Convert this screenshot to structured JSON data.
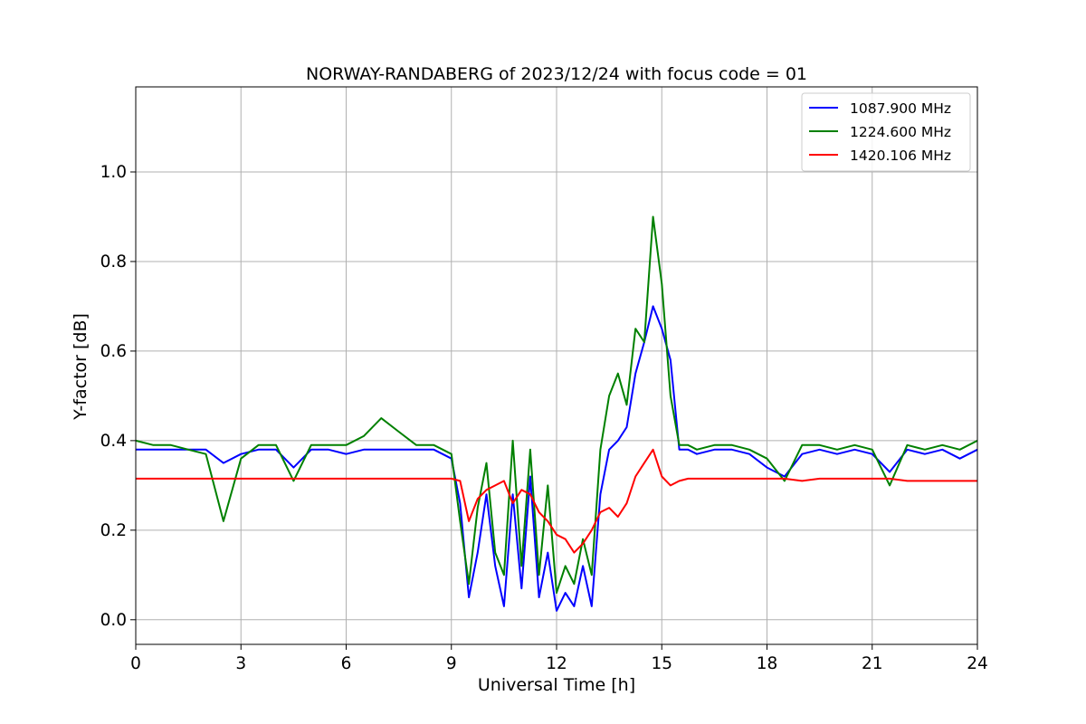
{
  "chart_data": {
    "type": "line",
    "title": "NORWAY-RANDABERG of 2023/12/24 with focus code = 01",
    "xlabel": "Universal Time [h]",
    "ylabel": "Y-factor [dB]",
    "xlim": [
      0,
      24
    ],
    "ylim": [
      -0.055,
      1.19
    ],
    "xticks": [
      0,
      3,
      6,
      9,
      12,
      15,
      18,
      21,
      24
    ],
    "xtick_labels": [
      "0",
      "3",
      "6",
      "9",
      "12",
      "15",
      "18",
      "21",
      "24"
    ],
    "yticks": [
      0.0,
      0.2,
      0.4,
      0.6,
      0.8,
      1.0
    ],
    "ytick_labels": [
      "0.0",
      "0.2",
      "0.4",
      "0.6",
      "0.8",
      "1.0"
    ],
    "grid": true,
    "legend_position": "upper right",
    "series": [
      {
        "name": "1087.900 MHz",
        "color": "#0000ff",
        "x": [
          0,
          0.5,
          1,
          1.5,
          2,
          2.5,
          3,
          3.5,
          4,
          4.5,
          5,
          5.5,
          6,
          6.5,
          7,
          7.5,
          8,
          8.5,
          9,
          9.25,
          9.5,
          9.75,
          10,
          10.25,
          10.5,
          10.75,
          11,
          11.25,
          11.5,
          11.75,
          12,
          12.25,
          12.5,
          12.75,
          13,
          13.25,
          13.5,
          13.75,
          14,
          14.25,
          14.5,
          14.75,
          15,
          15.25,
          15.5,
          15.75,
          16,
          16.5,
          17,
          17.5,
          18,
          18.5,
          19,
          19.5,
          20,
          20.5,
          21,
          21.5,
          22,
          22.5,
          23,
          23.5,
          24
        ],
        "y": [
          0.38,
          0.38,
          0.38,
          0.38,
          0.38,
          0.35,
          0.37,
          0.38,
          0.38,
          0.34,
          0.38,
          0.38,
          0.37,
          0.38,
          0.38,
          0.38,
          0.38,
          0.38,
          0.36,
          0.26,
          0.05,
          0.15,
          0.28,
          0.12,
          0.03,
          0.28,
          0.07,
          0.32,
          0.05,
          0.15,
          0.02,
          0.06,
          0.03,
          0.12,
          0.03,
          0.28,
          0.38,
          0.4,
          0.43,
          0.55,
          0.62,
          0.7,
          0.65,
          0.58,
          0.38,
          0.38,
          0.37,
          0.38,
          0.38,
          0.37,
          0.34,
          0.32,
          0.37,
          0.38,
          0.37,
          0.38,
          0.37,
          0.33,
          0.38,
          0.37,
          0.38,
          0.36,
          0.38
        ]
      },
      {
        "name": "1224.600 MHz",
        "color": "#008000",
        "x": [
          0,
          0.5,
          1,
          1.5,
          2,
          2.5,
          3,
          3.5,
          4,
          4.5,
          5,
          5.5,
          6,
          6.5,
          7,
          7.5,
          8,
          8.5,
          9,
          9.25,
          9.5,
          9.75,
          10,
          10.25,
          10.5,
          10.75,
          11,
          11.25,
          11.5,
          11.75,
          12,
          12.25,
          12.5,
          12.75,
          13,
          13.25,
          13.5,
          13.75,
          14,
          14.25,
          14.5,
          14.75,
          15,
          15.25,
          15.5,
          15.75,
          16,
          16.5,
          17,
          17.5,
          18,
          18.5,
          19,
          19.5,
          20,
          20.5,
          21,
          21.5,
          22,
          22.5,
          23,
          23.5,
          24
        ],
        "y": [
          0.4,
          0.39,
          0.39,
          0.38,
          0.37,
          0.22,
          0.36,
          0.39,
          0.39,
          0.31,
          0.39,
          0.39,
          0.39,
          0.41,
          0.45,
          0.42,
          0.39,
          0.39,
          0.37,
          0.22,
          0.08,
          0.25,
          0.35,
          0.15,
          0.1,
          0.4,
          0.12,
          0.38,
          0.1,
          0.3,
          0.06,
          0.12,
          0.08,
          0.18,
          0.1,
          0.38,
          0.5,
          0.55,
          0.48,
          0.65,
          0.62,
          0.9,
          0.75,
          0.5,
          0.39,
          0.39,
          0.38,
          0.39,
          0.39,
          0.38,
          0.36,
          0.31,
          0.39,
          0.39,
          0.38,
          0.39,
          0.38,
          0.3,
          0.39,
          0.38,
          0.39,
          0.38,
          0.4
        ]
      },
      {
        "name": "1420.106 MHz",
        "color": "#ff0000",
        "x": [
          0,
          0.5,
          1,
          1.5,
          2,
          2.5,
          3,
          3.5,
          4,
          4.5,
          5,
          5.5,
          6,
          6.5,
          7,
          7.5,
          8,
          8.5,
          9,
          9.25,
          9.5,
          9.75,
          10,
          10.25,
          10.5,
          10.75,
          11,
          11.25,
          11.5,
          11.75,
          12,
          12.25,
          12.5,
          12.75,
          13,
          13.25,
          13.5,
          13.75,
          14,
          14.25,
          14.5,
          14.75,
          15,
          15.25,
          15.5,
          15.75,
          16,
          16.5,
          17,
          17.5,
          18,
          18.5,
          19,
          19.5,
          20,
          20.5,
          21,
          21.5,
          22,
          22.5,
          23,
          23.5,
          24
        ],
        "y": [
          0.315,
          0.315,
          0.315,
          0.315,
          0.315,
          0.315,
          0.315,
          0.315,
          0.315,
          0.315,
          0.315,
          0.315,
          0.315,
          0.315,
          0.315,
          0.315,
          0.315,
          0.315,
          0.315,
          0.31,
          0.22,
          0.27,
          0.29,
          0.3,
          0.31,
          0.26,
          0.29,
          0.28,
          0.24,
          0.22,
          0.19,
          0.18,
          0.15,
          0.17,
          0.2,
          0.24,
          0.25,
          0.23,
          0.26,
          0.32,
          0.35,
          0.38,
          0.32,
          0.3,
          0.31,
          0.315,
          0.315,
          0.315,
          0.315,
          0.315,
          0.315,
          0.315,
          0.31,
          0.315,
          0.315,
          0.315,
          0.315,
          0.315,
          0.31,
          0.31,
          0.31,
          0.31,
          0.31
        ]
      }
    ]
  }
}
